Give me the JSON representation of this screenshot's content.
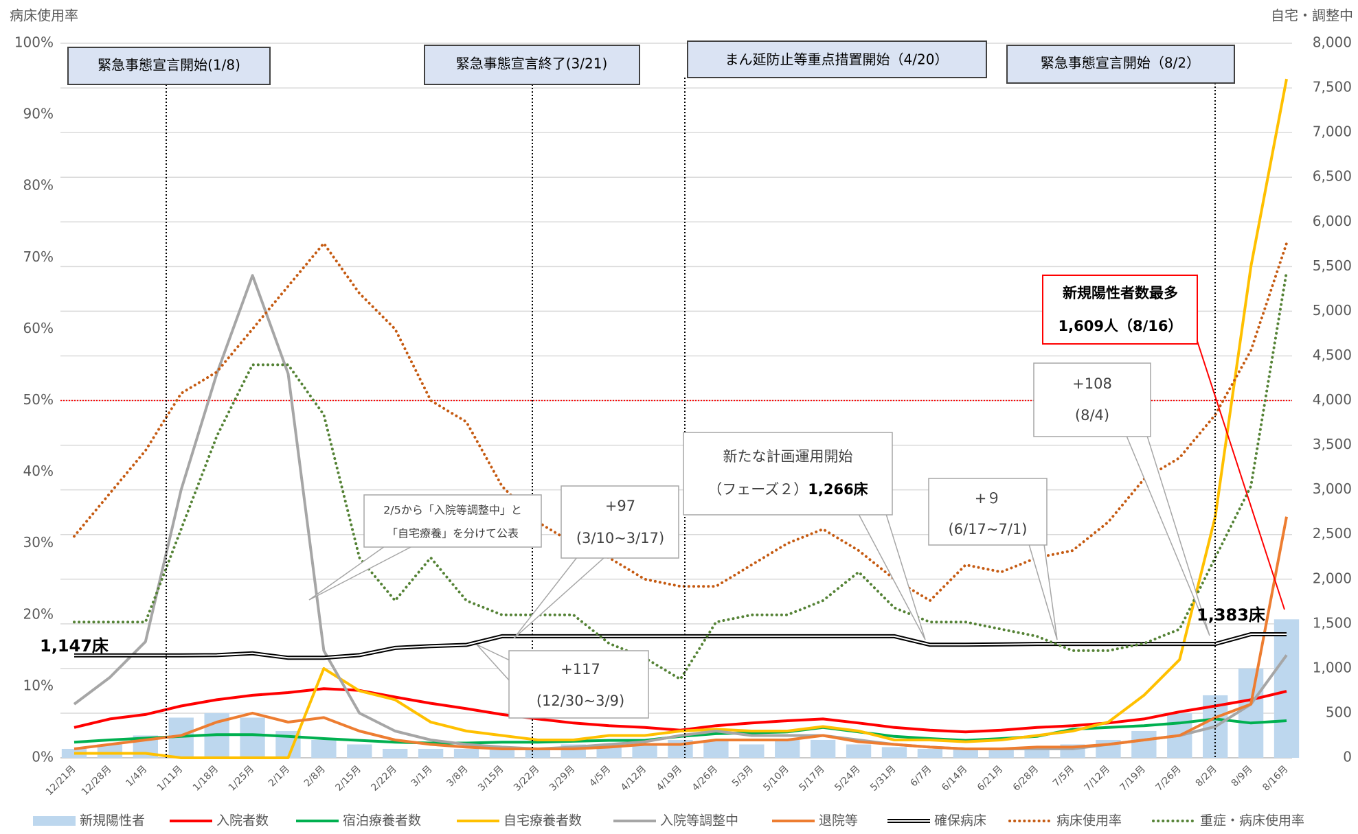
{
  "chart_data": {
    "type": "combo",
    "ylabel": "病床使用率",
    "y2label": "自宅・調整中",
    "categories": [
      "12/21月",
      "12/28月",
      "1/4月",
      "1/11月",
      "1/18月",
      "1/25月",
      "2/1月",
      "2/8月",
      "2/15月",
      "2/22月",
      "3/1月",
      "3/8月",
      "3/15月",
      "3/22月",
      "3/29月",
      "4/5月",
      "4/12月",
      "4/19月",
      "4/26月",
      "5/3月",
      "5/10月",
      "5/17月",
      "5/24月",
      "5/31月",
      "6/7月",
      "6/14月",
      "6/21月",
      "6/28月",
      "7/5月",
      "7/12月",
      "7/19月",
      "7/26月",
      "8/2月",
      "8/9月",
      "8/16月"
    ],
    "ylim": [
      0,
      100
    ],
    "yticks": [
      {
        "value": 0,
        "label": "0%"
      },
      {
        "value": 10,
        "label": "10%"
      },
      {
        "value": 20,
        "label": "20%"
      },
      {
        "value": 30,
        "label": "30%"
      },
      {
        "value": 40,
        "label": "40%"
      },
      {
        "value": 50,
        "label": "50%"
      },
      {
        "value": 60,
        "label": "60%"
      },
      {
        "value": 70,
        "label": "70%"
      },
      {
        "value": 80,
        "label": "80%"
      },
      {
        "value": 90,
        "label": "90%"
      },
      {
        "value": 100,
        "label": "100%"
      }
    ],
    "y2lim": [
      0,
      8000
    ],
    "y2ticks": [
      0,
      500,
      {
        "value": 1000,
        "label": "1,000"
      },
      {
        "value": 1500,
        "label": "1,500"
      },
      {
        "value": 2000,
        "label": "2,000"
      },
      {
        "value": 2500,
        "label": "2,500"
      },
      {
        "value": 3000,
        "label": "3,000"
      },
      {
        "value": 3500,
        "label": "3,500"
      },
      {
        "value": 4000,
        "label": "4,000"
      },
      {
        "value": 4500,
        "label": "4,500"
      },
      {
        "value": 5000,
        "label": "5,000"
      },
      {
        "value": 5500,
        "label": "5,500"
      },
      {
        "value": 6000,
        "label": "6,000"
      },
      {
        "value": 6500,
        "label": "6,500"
      },
      {
        "value": 7000,
        "label": "7,000"
      },
      {
        "value": 7500,
        "label": "7,500"
      },
      {
        "value": 8000,
        "label": "8,000"
      }
    ],
    "grid": true,
    "hline": {
      "value": 50,
      "color": "#ff0000"
    },
    "series": [
      {
        "name": "新規陽性者",
        "style": "bar",
        "axis": "y2",
        "color": "#bdd7ee",
        "values": [
          100,
          150,
          250,
          450,
          500,
          450,
          300,
          200,
          150,
          100,
          100,
          100,
          100,
          100,
          150,
          150,
          150,
          200,
          200,
          150,
          200,
          200,
          150,
          120,
          100,
          100,
          100,
          120,
          150,
          200,
          300,
          500,
          700,
          1000,
          1550
        ]
      },
      {
        "name": "入院者数",
        "style": "line",
        "axis": "y2",
        "color": "#ff0000",
        "values": [
          340,
          435,
          485,
          580,
          650,
          700,
          730,
          775,
          755,
          680,
          610,
          550,
          485,
          435,
          390,
          360,
          340,
          310,
          360,
          390,
          415,
          435,
          390,
          340,
          310,
          290,
          310,
          340,
          360,
          390,
          435,
          515,
          580,
          650,
          745
        ]
      },
      {
        "name": "宿泊療養者数",
        "style": "line",
        "axis": "y2",
        "color": "#00b050",
        "values": [
          175,
          200,
          220,
          240,
          260,
          260,
          240,
          215,
          195,
          175,
          165,
          165,
          175,
          175,
          185,
          195,
          195,
          240,
          270,
          280,
          290,
          340,
          290,
          240,
          215,
          195,
          215,
          240,
          320,
          340,
          360,
          390,
          435,
          390,
          415
        ]
      },
      {
        "name": "自宅療養者数",
        "style": "line",
        "axis": "y2",
        "color": "#ffc000",
        "values": [
          50,
          50,
          50,
          0,
          0,
          0,
          0,
          1000,
          750,
          650,
          400,
          300,
          250,
          200,
          200,
          250,
          250,
          300,
          320,
          300,
          300,
          350,
          300,
          200,
          200,
          180,
          200,
          250,
          300,
          400,
          700,
          1100,
          2700,
          5500,
          7600
        ]
      },
      {
        "name": "入院等調整中",
        "style": "line",
        "axis": "y2",
        "color": "#a6a6a6",
        "values": [
          600,
          900,
          1300,
          3000,
          4300,
          5400,
          4300,
          1200,
          500,
          300,
          200,
          150,
          120,
          100,
          120,
          150,
          180,
          250,
          300,
          250,
          250,
          250,
          200,
          150,
          120,
          100,
          100,
          100,
          100,
          150,
          200,
          250,
          350,
          600,
          1150
        ]
      },
      {
        "name": "退院等",
        "style": "line",
        "axis": "y2",
        "color": "#ed7d31",
        "values": [
          100,
          150,
          200,
          250,
          400,
          500,
          400,
          450,
          300,
          200,
          150,
          120,
          100,
          100,
          100,
          120,
          150,
          150,
          200,
          200,
          200,
          250,
          180,
          150,
          120,
          100,
          100,
          120,
          120,
          150,
          200,
          250,
          450,
          600,
          2700
        ]
      },
      {
        "name": "確保病床",
        "style": "double",
        "axis": "y2",
        "color": "#000000",
        "values": [
          1147,
          1147,
          1147,
          1147,
          1150,
          1170,
          1120,
          1120,
          1150,
          1230,
          1250,
          1264,
          1361,
          1361,
          1361,
          1361,
          1361,
          1361,
          1361,
          1361,
          1361,
          1361,
          1361,
          1361,
          1266,
          1266,
          1270,
          1275,
          1275,
          1275,
          1275,
          1275,
          1275,
          1383,
          1383
        ]
      },
      {
        "name": "病床使用率",
        "style": "dotted",
        "color": "#c55a11",
        "values": [
          31,
          37,
          43,
          51,
          54,
          60,
          66,
          72,
          65,
          60,
          50,
          47,
          38,
          33,
          30,
          28,
          25,
          24,
          24,
          27,
          30,
          32,
          29,
          25,
          22,
          27,
          26,
          28,
          29,
          33,
          39,
          42,
          48,
          57,
          72
        ]
      },
      {
        "name": "重症・病床使用率",
        "style": "dotted",
        "color": "#548235",
        "values": [
          19,
          19,
          19,
          32,
          45,
          55,
          55,
          48,
          28,
          22,
          28,
          22,
          20,
          20,
          20,
          16,
          14,
          11,
          19,
          20,
          20,
          22,
          26,
          21,
          19,
          19,
          18,
          17,
          15,
          15,
          16,
          18,
          28,
          38,
          68
        ]
      }
    ],
    "events": [
      "緊急事態宣言開始(1/8)",
      "緊急事態宣言終了(3/21)",
      "まん延防止等重点措置開始（4/20）",
      "緊急事態宣言開始（8/2）"
    ],
    "callouts": [
      [
        "2/5から「入院等調整中」と",
        "「自宅療養」を分けて公表"
      ],
      [
        "+97",
        "(3/10~3/17)"
      ],
      [
        "+117",
        "(12/30~3/9)"
      ],
      [
        "新たな計画運用開始",
        "（フェーズ２）",
        "1,266床"
      ],
      [
        "+９",
        "(6/17~7/1)"
      ],
      [
        "+108",
        "(8/4)"
      ],
      [
        "新規陽性者数最多",
        "1,609人（8/16）"
      ]
    ],
    "bed_labels": [
      "1,147床",
      "1,383床"
    ]
  }
}
